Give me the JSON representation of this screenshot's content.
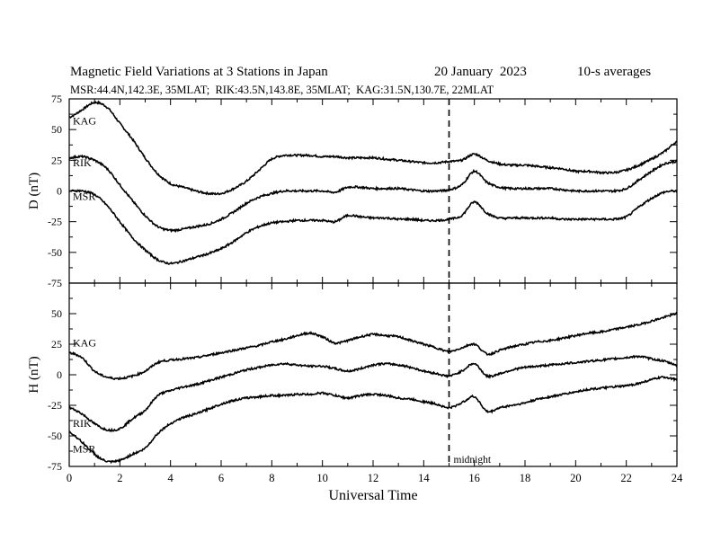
{
  "header": {
    "title": "Magnetic Field Variations at 3 Stations in Japan",
    "date": "20 January  2023",
    "averaging": "10-s averages",
    "stations_line": "MSR:44.4N,142.3E, 35MLAT;  RIK:43.5N,143.8E, 35MLAT;  KAG:31.5N,130.7E, 22MLAT"
  },
  "chart_data": [
    {
      "type": "line",
      "panel": "top",
      "ylabel": "D (nT)",
      "xlabel": "",
      "xlim": [
        0,
        24
      ],
      "ylim": [
        -75,
        75
      ],
      "yticks": [
        75,
        50,
        25,
        0,
        -25,
        -50,
        -75
      ],
      "ytick_labels": [
        "75",
        "50",
        "25",
        "0",
        "-25",
        "-50",
        "-75"
      ],
      "series": [
        {
          "name": "KAG",
          "x": [
            0,
            0.5,
            1,
            1.5,
            2,
            2.5,
            3,
            3.5,
            4,
            4.5,
            5,
            5.5,
            6,
            6.5,
            7,
            7.5,
            8,
            8.5,
            9,
            9.5,
            10,
            10.5,
            11,
            11.5,
            12,
            12.5,
            13,
            13.5,
            14,
            14.5,
            15,
            15.5,
            16,
            16.5,
            17,
            17.5,
            18,
            18.5,
            19,
            19.5,
            20,
            20.5,
            21,
            21.5,
            22,
            22.5,
            23,
            23.5,
            24
          ],
          "y": [
            60,
            66,
            72,
            68,
            55,
            42,
            27,
            14,
            6,
            3,
            0,
            -2,
            -2,
            2,
            8,
            17,
            26,
            29,
            29,
            29,
            28,
            28,
            27,
            27,
            27,
            26,
            25,
            24,
            23,
            23,
            24,
            25,
            30,
            25,
            22,
            21,
            21,
            20,
            19,
            18,
            16,
            16,
            15,
            15,
            17,
            21,
            26,
            32,
            40
          ]
        },
        {
          "name": "RIK",
          "x": [
            0,
            0.5,
            1,
            1.5,
            2,
            2.5,
            3,
            3.5,
            4,
            4.5,
            5,
            5.5,
            6,
            6.5,
            7,
            7.5,
            8,
            8.5,
            9,
            9.5,
            10,
            10.5,
            11,
            11.5,
            12,
            12.5,
            13,
            13.5,
            14,
            14.5,
            15,
            15.5,
            16,
            16.5,
            17,
            17.5,
            18,
            18.5,
            19,
            19.5,
            20,
            20.5,
            21,
            21.5,
            22,
            22.5,
            23,
            23.5,
            24
          ],
          "y": [
            27,
            28,
            25,
            18,
            5,
            -8,
            -20,
            -29,
            -32,
            -31,
            -29,
            -27,
            -23,
            -17,
            -10,
            -5,
            -2,
            0,
            0,
            0,
            0,
            -1,
            3,
            3,
            2,
            2,
            2,
            1,
            0,
            0,
            1,
            5,
            16,
            7,
            3,
            2,
            2,
            2,
            2,
            1,
            0,
            0,
            0,
            0,
            2,
            9,
            16,
            22,
            24
          ]
        },
        {
          "name": "MSR",
          "x": [
            0,
            0.5,
            1,
            1.5,
            2,
            2.5,
            3,
            3.5,
            4,
            4.5,
            5,
            5.5,
            6,
            6.5,
            7,
            7.5,
            8,
            8.5,
            9,
            9.5,
            10,
            10.5,
            11,
            11.5,
            12,
            12.5,
            13,
            13.5,
            14,
            14.5,
            15,
            15.5,
            16,
            16.5,
            17,
            17.5,
            18,
            18.5,
            19,
            19.5,
            20,
            20.5,
            21,
            21.5,
            22,
            22.5,
            23,
            23.5,
            24
          ],
          "y": [
            0,
            0,
            -3,
            -12,
            -25,
            -38,
            -48,
            -56,
            -59,
            -57,
            -54,
            -51,
            -47,
            -41,
            -34,
            -29,
            -26,
            -25,
            -24,
            -24,
            -24,
            -25,
            -20,
            -21,
            -22,
            -22,
            -23,
            -23,
            -24,
            -24,
            -23,
            -20,
            -9,
            -18,
            -22,
            -22,
            -22,
            -22,
            -22,
            -23,
            -23,
            -23,
            -23,
            -23,
            -21,
            -13,
            -6,
            -1,
            0
          ]
        }
      ]
    },
    {
      "type": "line",
      "panel": "bottom",
      "ylabel": "H (nT)",
      "xlabel": "Universal Time",
      "xlim": [
        0,
        24
      ],
      "ylim": [
        -75,
        75
      ],
      "xticks": [
        0,
        2,
        4,
        6,
        8,
        10,
        12,
        14,
        16,
        18,
        20,
        22,
        24
      ],
      "xtick_labels": [
        "0",
        "2",
        "4",
        "6",
        "8",
        "10",
        "12",
        "14",
        "16",
        "18",
        "20",
        "22",
        "24"
      ],
      "yticks": [
        75,
        50,
        25,
        0,
        -25,
        -50,
        -75
      ],
      "ytick_labels": [
        "",
        "50",
        "25",
        "0",
        "-25",
        "-50",
        "-75"
      ],
      "vline": {
        "x": 15,
        "label": "midnight",
        "style": "dashed"
      },
      "series": [
        {
          "name": "KAG",
          "x": [
            0,
            0.5,
            1,
            1.5,
            2,
            2.5,
            3,
            3.5,
            4,
            4.5,
            5,
            5.5,
            6,
            6.5,
            7,
            7.5,
            8,
            8.5,
            9,
            9.5,
            10,
            10.5,
            11,
            11.5,
            12,
            12.5,
            13,
            13.5,
            14,
            14.5,
            15,
            15.5,
            16,
            16.5,
            17,
            17.5,
            18,
            18.5,
            19,
            19.5,
            20,
            20.5,
            21,
            21.5,
            22,
            22.5,
            23,
            23.5,
            24
          ],
          "y": [
            18,
            14,
            3,
            -2,
            -3,
            -1,
            3,
            10,
            12,
            13,
            14,
            16,
            18,
            20,
            22,
            24,
            27,
            29,
            32,
            34,
            31,
            26,
            28,
            31,
            33,
            32,
            31,
            28,
            25,
            22,
            19,
            22,
            25,
            17,
            20,
            23,
            25,
            27,
            28,
            30,
            32,
            34,
            35,
            37,
            39,
            41,
            44,
            47,
            50
          ]
        },
        {
          "name": "RIK",
          "x": [
            0,
            0.5,
            1,
            1.5,
            2,
            2.5,
            3,
            3.5,
            4,
            4.5,
            5,
            5.5,
            6,
            6.5,
            7,
            7.5,
            8,
            8.5,
            9,
            9.5,
            10,
            10.5,
            11,
            11.5,
            12,
            12.5,
            13,
            13.5,
            14,
            14.5,
            15,
            15.5,
            16,
            16.5,
            17,
            17.5,
            18,
            18.5,
            19,
            19.5,
            20,
            20.5,
            21,
            21.5,
            22,
            22.5,
            23,
            23.5,
            24
          ],
          "y": [
            -27,
            -32,
            -40,
            -45,
            -44,
            -36,
            -29,
            -17,
            -13,
            -10,
            -8,
            -5,
            -2,
            1,
            4,
            6,
            8,
            9,
            8,
            7,
            7,
            5,
            3,
            5,
            8,
            9,
            8,
            6,
            3,
            1,
            -1,
            3,
            9,
            -1,
            1,
            4,
            6,
            7,
            8,
            9,
            10,
            11,
            12,
            13,
            14,
            15,
            13,
            11,
            8
          ]
        },
        {
          "name": "MSR",
          "x": [
            0,
            0.5,
            1,
            1.5,
            2,
            2.5,
            3,
            3.5,
            4,
            4.5,
            5,
            5.5,
            6,
            6.5,
            7,
            7.5,
            8,
            8.5,
            9,
            9.5,
            10,
            10.5,
            11,
            11.5,
            12,
            12.5,
            13,
            13.5,
            14,
            14.5,
            15,
            15.5,
            16,
            16.5,
            17,
            17.5,
            18,
            18.5,
            19,
            19.5,
            20,
            20.5,
            21,
            21.5,
            22,
            22.5,
            23,
            23.5,
            24
          ],
          "y": [
            -47,
            -55,
            -65,
            -71,
            -70,
            -65,
            -60,
            -48,
            -40,
            -35,
            -32,
            -28,
            -24,
            -21,
            -19,
            -18,
            -17,
            -17,
            -16,
            -16,
            -15,
            -17,
            -19,
            -17,
            -16,
            -17,
            -19,
            -20,
            -22,
            -24,
            -27,
            -23,
            -18,
            -30,
            -27,
            -25,
            -23,
            -20,
            -18,
            -16,
            -14,
            -12,
            -11,
            -10,
            -9,
            -7,
            -4,
            -2,
            -4
          ]
        }
      ]
    }
  ]
}
